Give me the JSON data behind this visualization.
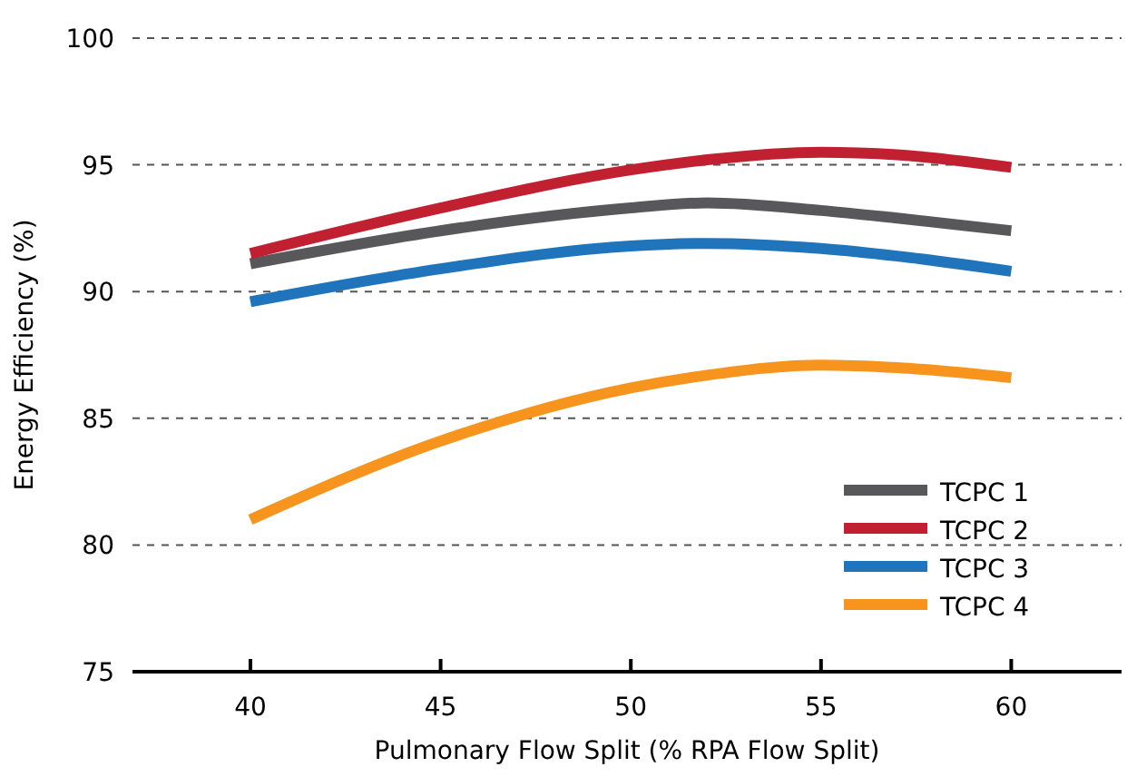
{
  "chart_data": {
    "type": "line",
    "xlabel": "Pulmonary Flow Split (% RPA Flow Split)",
    "ylabel": "Energy Efficiency (%)",
    "xlim": [
      36.9,
      62.9
    ],
    "xticks": [
      40,
      45,
      50,
      55,
      60
    ],
    "ylim": [
      75,
      100
    ],
    "yticks": [
      75,
      80,
      85,
      90,
      95,
      100
    ],
    "grid": "y",
    "legend": "bottom right",
    "line_style": "solid",
    "marker": "none",
    "x": [
      40,
      45,
      50,
      52,
      55,
      57,
      60
    ],
    "series": [
      {
        "name": "TCPC 1",
        "color": "#58585a",
        "values": [
          91.1,
          92.4,
          93.3,
          93.5,
          93.2,
          92.9,
          92.4
        ]
      },
      {
        "name": "TCPC 2",
        "color": "#c0202f",
        "values": [
          91.5,
          93.3,
          94.8,
          95.2,
          95.5,
          95.4,
          94.9
        ]
      },
      {
        "name": "TCPC 3",
        "color": "#1f74bb",
        "values": [
          89.6,
          90.9,
          91.8,
          91.9,
          91.7,
          91.4,
          90.8
        ]
      },
      {
        "name": "TCPC 4",
        "color": "#f7941d",
        "values": [
          81.0,
          84.1,
          86.2,
          86.7,
          87.1,
          87.0,
          86.6
        ]
      }
    ]
  }
}
